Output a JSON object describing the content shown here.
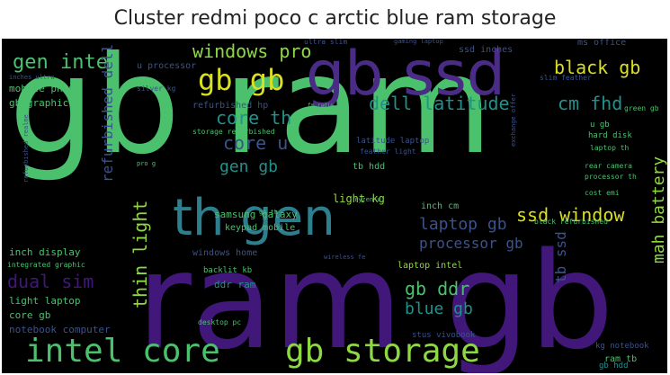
{
  "title": "Cluster redmi poco c arctic blue ram storage",
  "colors": {
    "background": "#000000",
    "green": "#4bc16e",
    "teal": "#2d7f8e",
    "purple": "#4a2b86",
    "darkpurple": "#41177a",
    "yellow": "#d9e020",
    "lightgreen": "#8ed943",
    "blue": "#3b528b",
    "tealgreen": "#21918c"
  },
  "words": [
    {
      "text": "gb ram",
      "color": "green",
      "size": 150,
      "rot": 0
    },
    {
      "text": "ram gb",
      "color": "darkpurple",
      "size": 148,
      "rot": 0
    },
    {
      "text": "gb ssd",
      "color": "purple",
      "size": 68,
      "rot": 0
    },
    {
      "text": "th gen",
      "color": "teal",
      "size": 56,
      "rot": 0
    },
    {
      "text": "intel core",
      "color": "green",
      "size": 36,
      "rot": 0
    },
    {
      "text": "gb storage",
      "color": "lightgreen",
      "size": 36,
      "rot": 0
    },
    {
      "text": "gb gb",
      "color": "yellow",
      "size": 32,
      "rot": 0
    },
    {
      "text": "black gb",
      "color": "yellow",
      "size": 20,
      "rot": 0
    },
    {
      "text": "windows pro",
      "color": "lightgreen",
      "size": 20,
      "rot": 0
    },
    {
      "text": "gen intel",
      "color": "green",
      "size": 22,
      "rot": 0
    },
    {
      "text": "dell latitude",
      "color": "tealgreen",
      "size": 20,
      "rot": 0
    },
    {
      "text": "cm fhd",
      "color": "tealgreen",
      "size": 20,
      "rot": 0
    },
    {
      "text": "core th",
      "color": "tealgreen",
      "size": 20,
      "rot": 0
    },
    {
      "text": "core u",
      "color": "blue",
      "size": 20,
      "rot": 0
    },
    {
      "text": "gen gb",
      "color": "tealgreen",
      "size": 18,
      "rot": 0
    },
    {
      "text": "laptop gb",
      "color": "blue",
      "size": 18,
      "rot": 0
    },
    {
      "text": "ssd window",
      "color": "yellow",
      "size": 20,
      "rot": 0
    },
    {
      "text": "processor gb",
      "color": "blue",
      "size": 16,
      "rot": 0
    },
    {
      "text": "gb ddr",
      "color": "green",
      "size": 20,
      "rot": 0
    },
    {
      "text": "blue gb",
      "color": "tealgreen",
      "size": 18,
      "rot": 0
    },
    {
      "text": "dual sim",
      "color": "darkpurple",
      "size": 20,
      "rot": 0
    },
    {
      "text": "mah battery",
      "color": "lightgreen",
      "size": 18,
      "rot": -90
    },
    {
      "text": "thin light",
      "color": "lightgreen",
      "size": 20,
      "rot": -90
    },
    {
      "text": "refurbished dell",
      "color": "blue",
      "size": 16,
      "rot": -90
    },
    {
      "text": "tb ssd",
      "color": "blue",
      "size": 16,
      "rot": -90
    },
    {
      "text": "light kg",
      "color": "lightgreen",
      "size": 12,
      "rot": 0
    },
    {
      "text": "samsung galaxy",
      "color": "green",
      "size": 11,
      "rot": 0
    },
    {
      "text": "mobile phone",
      "color": "green",
      "size": 11,
      "rot": 0
    },
    {
      "text": "gb graphic",
      "color": "green",
      "size": 11,
      "rot": 0
    },
    {
      "text": "refurbished hp",
      "color": "blue",
      "size": 10,
      "rot": 0
    },
    {
      "text": "inch display",
      "color": "green",
      "size": 11,
      "rot": 0
    },
    {
      "text": "light laptop",
      "color": "green",
      "size": 11,
      "rot": 0
    },
    {
      "text": "core gb",
      "color": "green",
      "size": 11,
      "rot": 0
    },
    {
      "text": "notebook computer",
      "color": "blue",
      "size": 11,
      "rot": 0
    },
    {
      "text": "ddr ram",
      "color": "tealgreen",
      "size": 11,
      "rot": 0
    },
    {
      "text": "windows home",
      "color": "blue",
      "size": 10,
      "rot": 0
    },
    {
      "text": "laptop intel",
      "color": "lightgreen",
      "size": 10,
      "rot": 0
    },
    {
      "text": "tb hdd",
      "color": "green",
      "size": 10,
      "rot": 0
    },
    {
      "text": "keypad mobile",
      "color": "green",
      "size": 10,
      "rot": 0
    },
    {
      "text": "backlit kb",
      "color": "green",
      "size": 9,
      "rot": 0
    },
    {
      "text": "inch cm",
      "color": "green",
      "size": 10,
      "rot": 0
    },
    {
      "text": "ssd inches",
      "color": "blue",
      "size": 10,
      "rot": 0
    },
    {
      "text": "ms office",
      "color": "blue",
      "size": 10,
      "rot": 0
    },
    {
      "text": "u processor",
      "color": "blue",
      "size": 10,
      "rot": 0
    },
    {
      "text": "hard disk",
      "color": "green",
      "size": 9,
      "rot": 0
    },
    {
      "text": "ram tb",
      "color": "green",
      "size": 10,
      "rot": 0
    },
    {
      "text": "gb hdd",
      "color": "tealgreen",
      "size": 9,
      "rot": 0
    },
    {
      "text": "kg notebook",
      "color": "blue",
      "size": 9,
      "rot": 0
    },
    {
      "text": "storage refurbished",
      "color": "green",
      "size": 8,
      "rot": 0
    },
    {
      "text": "latitude laptop",
      "color": "blue",
      "size": 9,
      "rot": 0
    },
    {
      "text": "feather light",
      "color": "blue",
      "size": 8,
      "rot": 0
    },
    {
      "text": "desktop pc",
      "color": "green",
      "size": 8,
      "rot": 0
    },
    {
      "text": "stus vivobook",
      "color": "blue",
      "size": 9,
      "rot": 0
    },
    {
      "text": "rear camera",
      "color": "green",
      "size": 8,
      "rot": 0
    },
    {
      "text": "processor th",
      "color": "green",
      "size": 8,
      "rot": 0
    },
    {
      "text": "cost emi",
      "color": "green",
      "size": 8,
      "rot": 0
    },
    {
      "text": "laptop th",
      "color": "green",
      "size": 8,
      "rot": 0
    },
    {
      "text": "black refurbished",
      "color": "green",
      "size": 8,
      "rot": 0
    },
    {
      "text": "slim feather",
      "color": "blue",
      "size": 8,
      "rot": 0
    },
    {
      "text": "green gb",
      "color": "green",
      "size": 8,
      "rot": 0
    },
    {
      "text": "u gb",
      "color": "green",
      "size": 9,
      "rot": 0
    },
    {
      "text": "silver kg",
      "color": "blue",
      "size": 8,
      "rot": 0
    },
    {
      "text": "ultra slim",
      "color": "blue",
      "size": 8,
      "rot": 0
    },
    {
      "text": "gaming laptop",
      "color": "blue",
      "size": 7,
      "rot": 0
    },
    {
      "text": "integrated graphic",
      "color": "green",
      "size": 8,
      "rot": 0
    },
    {
      "text": "wireless fe",
      "color": "blue",
      "size": 7,
      "rot": 0
    },
    {
      "text": "fm radio",
      "color": "green",
      "size": 6,
      "rot": 0
    },
    {
      "text": "gb th",
      "color": "green",
      "size": 7,
      "rot": 0
    },
    {
      "text": "pro g",
      "color": "green",
      "size": 7,
      "rot": 0
    },
    {
      "text": "ryzen u",
      "color": "green",
      "size": 7,
      "rot": 0
    },
    {
      "text": "inches ultra",
      "color": "blue",
      "size": 7,
      "rot": 0
    },
    {
      "text": "refurbished realme",
      "color": "blue",
      "size": 7,
      "rot": -90
    },
    {
      "text": "exchange offer",
      "color": "blue",
      "size": 7,
      "rot": -90
    }
  ]
}
